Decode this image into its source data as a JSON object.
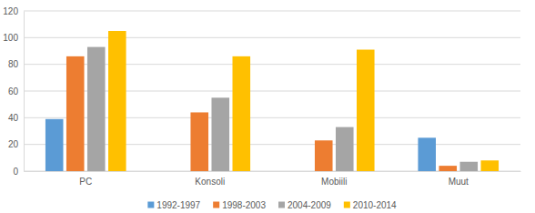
{
  "chart_data": {
    "type": "bar",
    "categories": [
      "PC",
      "Konsoli",
      "Mobiili",
      "Muut"
    ],
    "series": [
      {
        "name": "1992-1997",
        "color": "#5b9bd5",
        "values": [
          39,
          null,
          null,
          25
        ]
      },
      {
        "name": "1998-2003",
        "color": "#ed7d31",
        "values": [
          86,
          44,
          23,
          4
        ]
      },
      {
        "name": "2004-2009",
        "color": "#a5a5a5",
        "values": [
          93,
          55,
          33,
          7
        ]
      },
      {
        "name": "2010-2014",
        "color": "#ffc000",
        "values": [
          105,
          86,
          91,
          8
        ]
      }
    ],
    "ylim": [
      0,
      120
    ],
    "yticks": [
      0,
      20,
      40,
      60,
      80,
      100,
      120
    ],
    "grid": true,
    "legend": "bottom"
  }
}
